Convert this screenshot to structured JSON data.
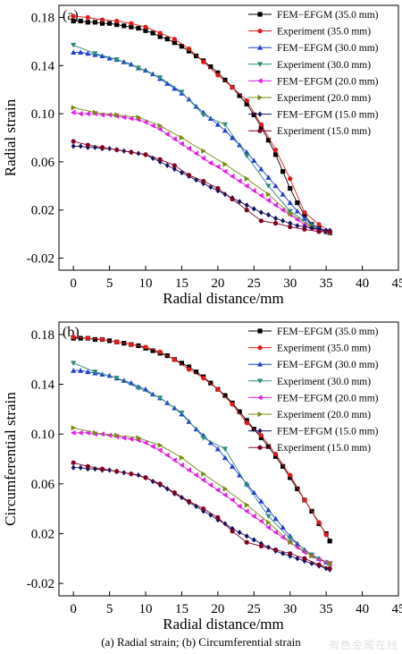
{
  "caption": "(a) Radial strain; (b) Circumferential strain",
  "watermark": "有色金属在线",
  "styles": [
    {
      "color": "#000000",
      "marker": "square"
    },
    {
      "color": "#e31a1c",
      "marker": "circle"
    },
    {
      "color": "#1f3fd1",
      "marker": "triangle-up"
    },
    {
      "color": "#2e8b7a",
      "marker": "triangle-down"
    },
    {
      "color": "#e020e0",
      "marker": "triangle-left"
    },
    {
      "color": "#7a8a10",
      "marker": "triangle-right"
    },
    {
      "color": "#101060",
      "marker": "diamond"
    },
    {
      "color": "#800020",
      "marker": "circle"
    }
  ],
  "chart_data": [
    {
      "type": "line",
      "panel_label": "(a)",
      "xlabel": "Radial distance/mm",
      "ylabel": "Radial strain",
      "xlim": [
        -2,
        45
      ],
      "ylim": [
        -0.03,
        0.19
      ],
      "xticks": [
        "0",
        "5",
        "10",
        "15",
        "20",
        "25",
        "30",
        "35",
        "40",
        "45"
      ],
      "yticks": [
        "-0.02",
        "0.02",
        "0.06",
        "0.10",
        "0.14",
        "0.18"
      ],
      "legend_position": "top-right",
      "series": [
        {
          "name": "FEM−EFGM (35.0 mm)",
          "x": [
            0,
            1,
            2,
            3,
            4,
            5,
            6,
            7,
            8,
            9,
            10,
            11,
            12,
            13,
            14,
            15,
            16,
            17,
            18,
            19,
            20,
            21,
            22,
            23,
            24,
            25,
            26,
            27,
            28,
            29,
            30,
            31,
            32,
            33,
            34,
            35,
            35.5
          ],
          "y": [
            0.177,
            0.177,
            0.176,
            0.176,
            0.175,
            0.175,
            0.174,
            0.173,
            0.172,
            0.171,
            0.169,
            0.167,
            0.164,
            0.162,
            0.159,
            0.156,
            0.152,
            0.148,
            0.144,
            0.139,
            0.134,
            0.128,
            0.122,
            0.115,
            0.108,
            0.099,
            0.089,
            0.078,
            0.066,
            0.052,
            0.038,
            0.026,
            0.016,
            0.008,
            0.005,
            0.002,
            0.001
          ]
        },
        {
          "name": "Experiment (35.0 mm)",
          "x": [
            0,
            2,
            4,
            6,
            8,
            10,
            12,
            14,
            16,
            18,
            20,
            22,
            24,
            26,
            28,
            30,
            32,
            34,
            35.5
          ],
          "y": [
            0.181,
            0.18,
            0.178,
            0.177,
            0.175,
            0.172,
            0.167,
            0.162,
            0.154,
            0.143,
            0.132,
            0.122,
            0.111,
            0.091,
            0.07,
            0.046,
            0.018,
            0.008,
            0.002
          ]
        },
        {
          "name": "FEM−EFGM (30.0 mm)",
          "x": [
            0,
            1,
            2,
            3,
            4,
            5,
            6,
            7,
            8,
            9,
            10,
            11,
            12,
            13,
            14,
            15,
            16,
            17,
            18,
            19,
            20,
            21,
            22,
            23,
            24,
            25,
            26,
            27,
            28,
            29,
            30,
            31,
            32,
            33,
            34,
            35,
            35.5
          ],
          "y": [
            0.151,
            0.151,
            0.15,
            0.149,
            0.148,
            0.146,
            0.145,
            0.143,
            0.141,
            0.138,
            0.136,
            0.133,
            0.129,
            0.125,
            0.121,
            0.117,
            0.112,
            0.106,
            0.101,
            0.096,
            0.091,
            0.086,
            0.08,
            0.074,
            0.068,
            0.061,
            0.054,
            0.047,
            0.04,
            0.033,
            0.026,
            0.019,
            0.013,
            0.008,
            0.005,
            0.003,
            0.003
          ]
        },
        {
          "name": "Experiment (30.0 mm)",
          "x": [
            0,
            3,
            6,
            9,
            12,
            15,
            18,
            21,
            24,
            27,
            30,
            33,
            35.5
          ],
          "y": [
            0.157,
            0.15,
            0.145,
            0.138,
            0.13,
            0.118,
            0.099,
            0.091,
            0.065,
            0.04,
            0.019,
            0.007,
            0.001
          ]
        },
        {
          "name": "FEM−EFGM (20.0 mm)",
          "x": [
            0,
            1,
            2,
            3,
            4,
            5,
            6,
            7,
            8,
            9,
            10,
            11,
            12,
            13,
            14,
            15,
            16,
            17,
            18,
            19,
            20,
            21,
            22,
            23,
            24,
            25,
            26,
            27,
            28,
            29,
            30,
            31,
            32,
            33,
            34,
            35,
            35.5
          ],
          "y": [
            0.101,
            0.1,
            0.1,
            0.1,
            0.099,
            0.099,
            0.098,
            0.097,
            0.096,
            0.095,
            0.093,
            0.09,
            0.087,
            0.083,
            0.079,
            0.075,
            0.071,
            0.067,
            0.063,
            0.059,
            0.056,
            0.052,
            0.048,
            0.044,
            0.04,
            0.036,
            0.032,
            0.028,
            0.024,
            0.02,
            0.016,
            0.012,
            0.008,
            0.005,
            0.003,
            0.002,
            0.002
          ]
        },
        {
          "name": "Experiment (20.0 mm)",
          "x": [
            0,
            3,
            6,
            9,
            12,
            15,
            18,
            21,
            24,
            27,
            30,
            33,
            35.5
          ],
          "y": [
            0.105,
            0.101,
            0.099,
            0.097,
            0.09,
            0.08,
            0.069,
            0.058,
            0.046,
            0.033,
            0.017,
            0.006,
            0.001
          ]
        },
        {
          "name": "FEM−EFGM (15.0 mm)",
          "x": [
            0,
            1,
            2,
            3,
            4,
            5,
            6,
            7,
            8,
            9,
            10,
            11,
            12,
            13,
            14,
            15,
            16,
            17,
            18,
            19,
            20,
            21,
            22,
            23,
            24,
            25,
            26,
            27,
            28,
            29,
            30,
            31,
            32,
            33,
            34,
            35,
            35.5
          ],
          "y": [
            0.073,
            0.073,
            0.072,
            0.072,
            0.071,
            0.071,
            0.07,
            0.069,
            0.068,
            0.067,
            0.066,
            0.063,
            0.06,
            0.057,
            0.054,
            0.051,
            0.048,
            0.045,
            0.042,
            0.039,
            0.036,
            0.033,
            0.03,
            0.027,
            0.024,
            0.021,
            0.018,
            0.016,
            0.013,
            0.011,
            0.009,
            0.007,
            0.006,
            0.005,
            0.004,
            0.003,
            0.003
          ]
        },
        {
          "name": "Experiment (15.0 mm)",
          "x": [
            0,
            2,
            4,
            6,
            8,
            10,
            12,
            14,
            16,
            18,
            20,
            22,
            24,
            26,
            28,
            30,
            32,
            34,
            35.5
          ],
          "y": [
            0.077,
            0.074,
            0.072,
            0.07,
            0.068,
            0.066,
            0.062,
            0.057,
            0.049,
            0.044,
            0.038,
            0.029,
            0.02,
            0.011,
            0.009,
            0.006,
            0.004,
            0.002,
            0.002
          ]
        }
      ]
    },
    {
      "type": "line",
      "panel_label": "(b)",
      "xlabel": "Radial distance/mm",
      "ylabel": "Circumferential strain",
      "xlim": [
        -2,
        45
      ],
      "ylim": [
        -0.03,
        0.19
      ],
      "xticks": [
        "0",
        "5",
        "10",
        "15",
        "20",
        "25",
        "30",
        "35",
        "40",
        "45"
      ],
      "yticks": [
        "-0.02",
        "0.02",
        "0.06",
        "0.10",
        "0.14",
        "0.18"
      ],
      "legend_position": "top-right",
      "series": [
        {
          "name": "FEM−EFGM (35.0 mm)",
          "x": [
            0,
            1,
            2,
            3,
            4,
            5,
            6,
            7,
            8,
            9,
            10,
            11,
            12,
            13,
            14,
            15,
            16,
            17,
            18,
            19,
            20,
            21,
            22,
            23,
            24,
            25,
            26,
            27,
            28,
            29,
            30,
            31,
            32,
            33,
            34,
            35,
            35.5
          ],
          "y": [
            0.177,
            0.177,
            0.177,
            0.176,
            0.176,
            0.175,
            0.174,
            0.173,
            0.172,
            0.171,
            0.169,
            0.167,
            0.165,
            0.163,
            0.16,
            0.157,
            0.154,
            0.15,
            0.146,
            0.141,
            0.136,
            0.131,
            0.125,
            0.118,
            0.111,
            0.104,
            0.097,
            0.09,
            0.082,
            0.074,
            0.065,
            0.056,
            0.047,
            0.038,
            0.028,
            0.02,
            0.014
          ]
        },
        {
          "name": "Experiment (35.0 mm)",
          "x": [
            0,
            2,
            4,
            6,
            8,
            10,
            12,
            14,
            16,
            18,
            20,
            22,
            24,
            26,
            28,
            30,
            32,
            34,
            35
          ],
          "y": [
            0.178,
            0.177,
            0.176,
            0.174,
            0.172,
            0.17,
            0.166,
            0.16,
            0.152,
            0.145,
            0.136,
            0.124,
            0.109,
            0.099,
            0.084,
            0.067,
            0.047,
            0.029,
            0.019
          ]
        },
        {
          "name": "FEM−EFGM (30.0 mm)",
          "x": [
            0,
            1,
            2,
            3,
            4,
            5,
            6,
            7,
            8,
            9,
            10,
            11,
            12,
            13,
            14,
            15,
            16,
            17,
            18,
            19,
            20,
            21,
            22,
            23,
            24,
            25,
            26,
            27,
            28,
            29,
            30,
            31,
            32,
            33,
            34,
            35,
            35.5
          ],
          "y": [
            0.151,
            0.151,
            0.15,
            0.149,
            0.148,
            0.147,
            0.145,
            0.143,
            0.141,
            0.138,
            0.136,
            0.132,
            0.129,
            0.125,
            0.121,
            0.116,
            0.11,
            0.104,
            0.099,
            0.093,
            0.088,
            0.081,
            0.074,
            0.067,
            0.06,
            0.053,
            0.046,
            0.039,
            0.032,
            0.025,
            0.018,
            0.012,
            0.007,
            0.003,
            0.0,
            -0.003,
            -0.004
          ]
        },
        {
          "name": "Experiment (30.0 mm)",
          "x": [
            0,
            3,
            6,
            9,
            12,
            15,
            18,
            21,
            24,
            27,
            30,
            33,
            35.5
          ],
          "y": [
            0.157,
            0.15,
            0.145,
            0.137,
            0.129,
            0.117,
            0.097,
            0.088,
            0.059,
            0.034,
            0.016,
            0.003,
            -0.004
          ]
        },
        {
          "name": "FEM−EFGM (20.0 mm)",
          "x": [
            0,
            1,
            2,
            3,
            4,
            5,
            6,
            7,
            8,
            9,
            10,
            11,
            12,
            13,
            14,
            15,
            16,
            17,
            18,
            19,
            20,
            21,
            22,
            23,
            24,
            25,
            26,
            27,
            28,
            29,
            30,
            31,
            32,
            33,
            34,
            35,
            35.5
          ],
          "y": [
            0.101,
            0.101,
            0.101,
            0.1,
            0.1,
            0.099,
            0.098,
            0.097,
            0.096,
            0.095,
            0.093,
            0.09,
            0.087,
            0.083,
            0.079,
            0.075,
            0.071,
            0.067,
            0.063,
            0.059,
            0.055,
            0.051,
            0.047,
            0.042,
            0.038,
            0.034,
            0.03,
            0.025,
            0.021,
            0.017,
            0.013,
            0.009,
            0.005,
            0.002,
            -0.001,
            -0.003,
            -0.004
          ]
        },
        {
          "name": "Experiment (20.0 mm)",
          "x": [
            0,
            3,
            6,
            9,
            12,
            15,
            18,
            21,
            24,
            27,
            30,
            33,
            35.5
          ],
          "y": [
            0.105,
            0.101,
            0.099,
            0.097,
            0.091,
            0.081,
            0.068,
            0.056,
            0.043,
            0.029,
            0.013,
            0.002,
            -0.004
          ]
        },
        {
          "name": "FEM−EFGM (15.0 mm)",
          "x": [
            0,
            1,
            2,
            3,
            4,
            5,
            6,
            7,
            8,
            9,
            10,
            11,
            12,
            13,
            14,
            15,
            16,
            17,
            18,
            19,
            20,
            21,
            22,
            23,
            24,
            25,
            26,
            27,
            28,
            29,
            30,
            31,
            32,
            33,
            34,
            35,
            35.5
          ],
          "y": [
            0.073,
            0.073,
            0.072,
            0.072,
            0.071,
            0.071,
            0.07,
            0.069,
            0.068,
            0.067,
            0.065,
            0.062,
            0.059,
            0.056,
            0.052,
            0.049,
            0.045,
            0.042,
            0.038,
            0.035,
            0.031,
            0.028,
            0.024,
            0.021,
            0.018,
            0.015,
            0.012,
            0.009,
            0.006,
            0.004,
            0.002,
            0.0,
            -0.002,
            -0.004,
            -0.006,
            -0.008,
            -0.009
          ]
        },
        {
          "name": "Experiment (15.0 mm)",
          "x": [
            0,
            2,
            4,
            6,
            8,
            10,
            12,
            14,
            16,
            18,
            20,
            22,
            24,
            26,
            28,
            30,
            32,
            34,
            35.5
          ],
          "y": [
            0.077,
            0.074,
            0.072,
            0.07,
            0.068,
            0.065,
            0.06,
            0.053,
            0.046,
            0.04,
            0.033,
            0.022,
            0.013,
            0.01,
            0.007,
            0.004,
            0.0,
            -0.005,
            -0.008
          ]
        }
      ]
    }
  ]
}
